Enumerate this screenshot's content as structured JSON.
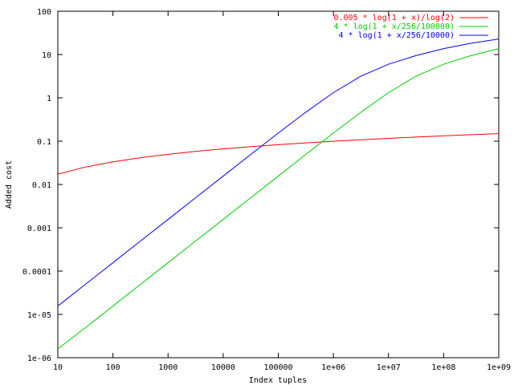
{
  "chart_data": {
    "type": "line",
    "xlabel": "Index tuples",
    "ylabel": "Added cost",
    "xscale": "log",
    "yscale": "log",
    "xlim": [
      10,
      1000000000
    ],
    "ylim": [
      1e-06,
      100
    ],
    "x_ticks": [
      {
        "value": 10,
        "label": "10"
      },
      {
        "value": 100,
        "label": "100"
      },
      {
        "value": 1000,
        "label": "1000"
      },
      {
        "value": 10000,
        "label": "10000"
      },
      {
        "value": 100000,
        "label": "100000"
      },
      {
        "value": 1000000,
        "label": "1e+06"
      },
      {
        "value": 10000000,
        "label": "1e+07"
      },
      {
        "value": 100000000,
        "label": "1e+08"
      },
      {
        "value": 1000000000,
        "label": "1e+09"
      }
    ],
    "y_ticks": [
      {
        "value": 100,
        "label": "100"
      },
      {
        "value": 10,
        "label": "10"
      },
      {
        "value": 1,
        "label": "1"
      },
      {
        "value": 0.1,
        "label": "0.1"
      },
      {
        "value": 0.01,
        "label": "0.01"
      },
      {
        "value": 0.001,
        "label": "0.001"
      },
      {
        "value": 0.0001,
        "label": "0.0001"
      },
      {
        "value": 1e-05,
        "label": "1e-05"
      },
      {
        "value": 1e-06,
        "label": "1e-06"
      }
    ],
    "grid": false,
    "legend_position": "top-right",
    "x": [
      10,
      31.6,
      100,
      316,
      1000,
      3160,
      10000,
      31600,
      100000,
      316000,
      1000000,
      3160000,
      10000000,
      31600000,
      100000000,
      316000000,
      1000000000
    ],
    "series": [
      {
        "name": "0.005 * log(1 + x)/log(2)",
        "color": "#ff0000",
        "values": [
          0.0173,
          0.0252,
          0.0333,
          0.0415,
          0.0498,
          0.0581,
          0.0664,
          0.0747,
          0.083,
          0.0913,
          0.0997,
          0.108,
          0.1163,
          0.1246,
          0.1329,
          0.1412,
          0.1495
        ]
      },
      {
        "name": "4 * log(1 + x/256/100000)",
        "color": "#00cc00",
        "values": [
          1.6e-06,
          4.9e-06,
          1.56e-05,
          4.94e-05,
          0.000156,
          0.000494,
          0.00156,
          0.00494,
          0.0156,
          0.0493,
          0.154,
          0.466,
          1.32,
          3.17,
          5.98,
          9.47,
          13.7
        ]
      },
      {
        "name": "4 * log(1 + x/256/10000)",
        "color": "#0000ff",
        "values": [
          1.56e-05,
          4.94e-05,
          0.000156,
          0.000494,
          0.00156,
          0.00494,
          0.0156,
          0.0493,
          0.154,
          0.466,
          1.32,
          3.17,
          5.98,
          9.47,
          13.7,
          18.3,
          22.8
        ]
      }
    ]
  }
}
